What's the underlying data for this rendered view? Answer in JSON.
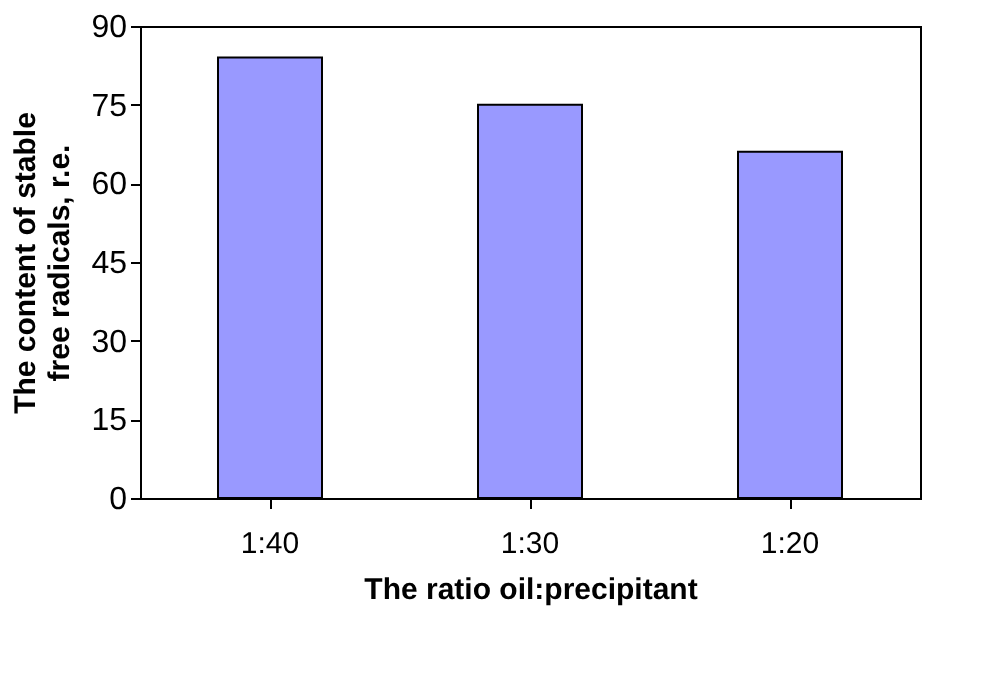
{
  "chart_data": {
    "type": "bar",
    "xlabel": "The ratio oil:precipitant",
    "ylabel": "The content of stable free radicals, r.e.",
    "categories": [
      "1:40",
      "1:30",
      "1:20"
    ],
    "values": [
      84,
      75,
      66
    ],
    "color": "#9999ff",
    "ylim": [
      0,
      90
    ],
    "yticks": [
      0,
      15,
      30,
      45,
      60,
      75,
      90
    ],
    "grid": false
  }
}
